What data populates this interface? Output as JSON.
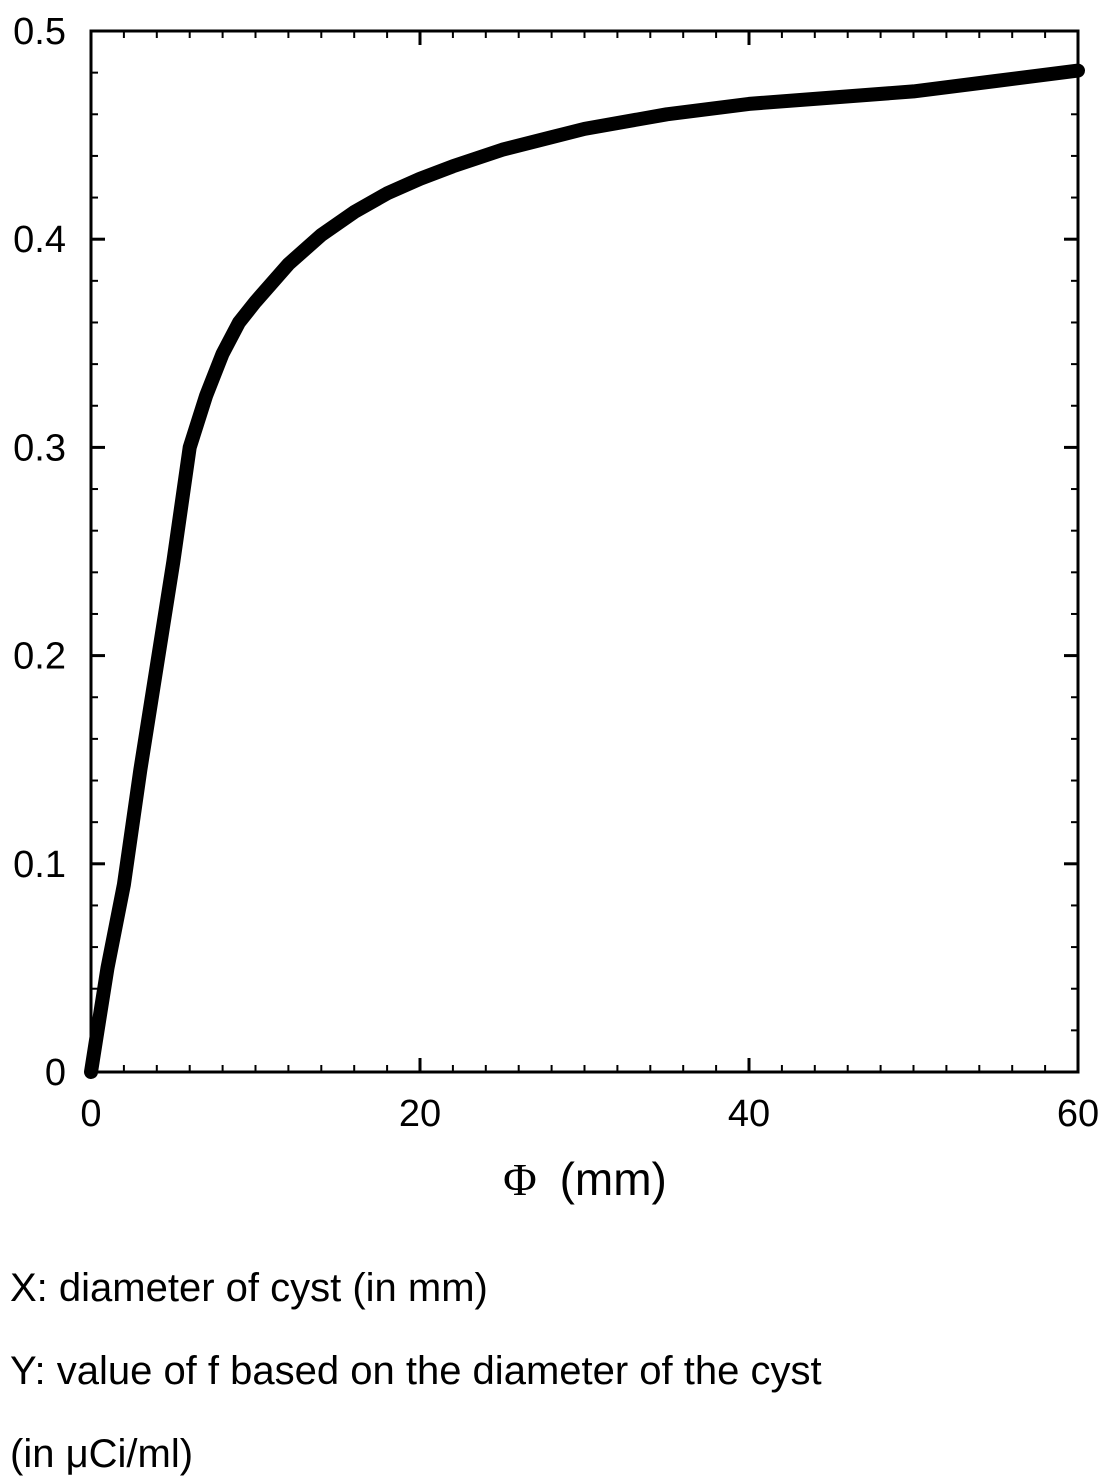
{
  "chart_data": {
    "type": "line",
    "title": "",
    "xlabel_symbol": "Φ",
    "xlabel_unit": "(mm)",
    "ylabel": "",
    "xlim": [
      0,
      60
    ],
    "ylim": [
      0,
      0.5
    ],
    "x_ticks": [
      0,
      20,
      40,
      60
    ],
    "x_tick_labels": [
      "0",
      "20",
      "40",
      "60"
    ],
    "y_ticks": [
      0,
      0.1,
      0.2,
      0.3,
      0.4,
      0.5
    ],
    "y_tick_labels": [
      "0",
      "0.1",
      "0.2",
      "0.3",
      "0.4",
      "0.5"
    ],
    "grid": false,
    "series": [
      {
        "color": "#000000",
        "x": [
          0,
          0.5,
          1,
          2,
          3,
          4,
          5,
          6,
          7,
          8,
          9,
          10,
          12,
          14,
          16,
          18,
          20,
          22,
          25,
          28,
          30,
          35,
          40,
          45,
          50,
          55,
          60
        ],
        "y": [
          0,
          0.025,
          0.05,
          0.09,
          0.145,
          0.195,
          0.245,
          0.3,
          0.325,
          0.345,
          0.36,
          0.37,
          0.388,
          0.402,
          0.413,
          0.422,
          0.429,
          0.435,
          0.443,
          0.449,
          0.453,
          0.46,
          0.465,
          0.468,
          0.471,
          0.476,
          0.481
        ]
      }
    ]
  },
  "caption": {
    "x_desc": "X: diameter of cyst (in mm)",
    "y_desc": "Y: value of f based on the diameter of the cyst",
    "y_unit": "(in μCi/ml)"
  }
}
